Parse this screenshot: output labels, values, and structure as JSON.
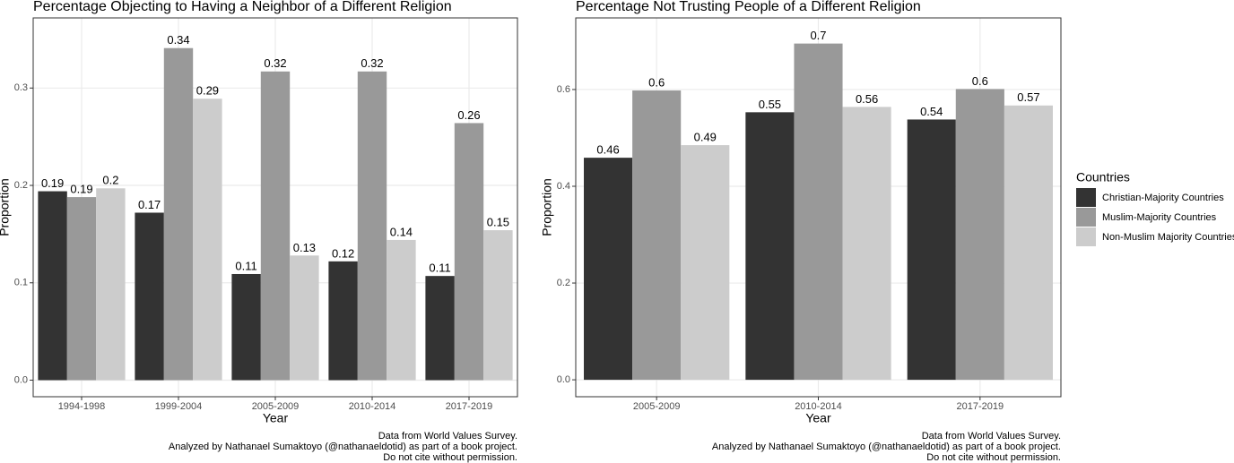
{
  "chart_data": [
    {
      "type": "bar",
      "title": "Percentage Objecting to Having a Neighbor of a Different Religion",
      "x_label": "Year",
      "y_label": "Proportion",
      "categories": [
        "1994-1998",
        "1999-2004",
        "2005-2009",
        "2010-2014",
        "2017-2019"
      ],
      "series": [
        {
          "color": "#333333",
          "values": [
            0.194,
            0.172,
            0.109,
            0.122,
            0.107
          ],
          "value_labels": [
            "0.19",
            "0.17",
            "0.11",
            "0.12",
            "0.11"
          ]
        },
        {
          "color": "#999999",
          "values": [
            0.188,
            0.341,
            0.317,
            0.317,
            0.264
          ],
          "value_labels": [
            "0.19",
            "0.34",
            "0.32",
            "0.32",
            "0.26"
          ]
        },
        {
          "color": "#cccccc",
          "values": [
            0.197,
            0.289,
            0.128,
            0.144,
            0.154
          ],
          "value_labels": [
            "0.2",
            "0.29",
            "0.13",
            "0.14",
            "0.15"
          ]
        }
      ],
      "ylim": [
        -0.017,
        0.372
      ],
      "yticks": [
        {
          "value": 0,
          "label": "0.0"
        },
        0.1,
        0.2,
        0.3
      ],
      "grid": true,
      "caption": [
        "Data from World Values Survey.",
        "Analyzed by Nathanael Sumaktoyo (@nathanaeldotid) as part of a book project.",
        "Do not cite without permission."
      ]
    },
    {
      "type": "bar",
      "title": "Percentage Not Trusting People of a Different Religion",
      "x_label": "Year",
      "y_label": "Proportion",
      "categories": [
        "2005-2009",
        "2010-2014",
        "2017-2019"
      ],
      "series": [
        {
          "name": "Christian-Majority Countries",
          "color": "#333333",
          "values": [
            0.459,
            0.553,
            0.538
          ],
          "value_labels": [
            "0.46",
            "0.55",
            "0.54"
          ]
        },
        {
          "name": "Muslim-Majority Countries",
          "color": "#999999",
          "values": [
            0.598,
            0.695,
            0.601
          ],
          "value_labels": [
            "0.6",
            "0.7",
            "0.6"
          ]
        },
        {
          "name": "Non-Muslim Majority Countries",
          "color": "#cccccc",
          "values": [
            0.485,
            0.564,
            0.567
          ],
          "value_labels": [
            "0.49",
            "0.56",
            "0.57"
          ]
        }
      ],
      "ylim": [
        -0.035,
        0.748
      ],
      "yticks": [
        {
          "value": 0,
          "label": "0.0"
        },
        0.2,
        0.4,
        0.6
      ],
      "grid": true,
      "legend_title": "Countries",
      "legend": "right",
      "caption": [
        "Data from World Values Survey.",
        "Analyzed by Nathanael Sumaktoyo (@nathanaeldotid) as part of a book project.",
        "Do not cite without permission."
      ]
    }
  ]
}
